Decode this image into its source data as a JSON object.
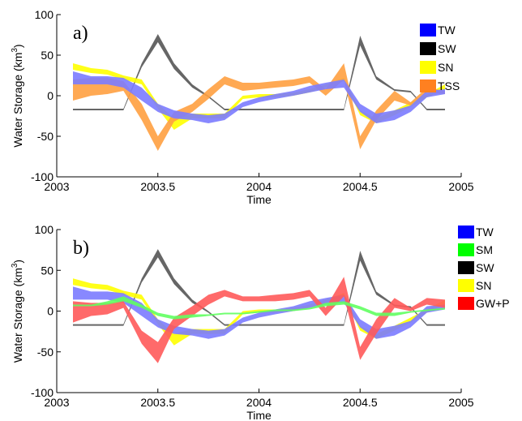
{
  "chart_data": [
    {
      "type": "area",
      "panel_label": "a)",
      "xlabel": "Time",
      "ylabel": "Water Storage (km³)",
      "ylabel_main": "Water Storage (km",
      "ylabel_sup": "3",
      "ylabel_close": ")",
      "xlim": [
        2003,
        2005
      ],
      "ylim": [
        -100,
        100
      ],
      "xticks": [
        2003,
        2003.5,
        2004,
        2004.5,
        2005
      ],
      "xtick_labels": [
        "2003",
        "2003.5",
        "2004",
        "2004.5",
        "2005"
      ],
      "yticks": [
        -100,
        -50,
        0,
        50,
        100
      ],
      "ytick_labels": [
        "-100",
        "-50",
        "0",
        "50",
        "100"
      ],
      "legend_position": "top-right",
      "series": [
        {
          "name": "SW",
          "color": "#555555",
          "x": [
            2003.08,
            2003.17,
            2003.25,
            2003.33,
            2003.42,
            2003.5,
            2003.58,
            2003.67,
            2003.75,
            2003.83,
            2003.92,
            2004.0,
            2004.08,
            2004.17,
            2004.25,
            2004.33,
            2004.42,
            2004.5,
            2004.58,
            2004.67,
            2004.75,
            2004.83,
            2004.92
          ],
          "upper": [
            -16,
            -16,
            -16,
            -16,
            40,
            76,
            40,
            14,
            0,
            -16,
            -16,
            -16,
            -16,
            -16,
            -16,
            -16,
            -16,
            74,
            24,
            8,
            6,
            -16,
            -16
          ],
          "lower": [
            -18,
            -18,
            -18,
            -18,
            35,
            66,
            33,
            10,
            -2,
            -18,
            -18,
            -18,
            -18,
            -18,
            -18,
            -18,
            -18,
            62,
            20,
            6,
            4,
            -18,
            -18
          ]
        },
        {
          "name": "SN",
          "color": "#ffff00",
          "x": [
            2003.08,
            2003.17,
            2003.25,
            2003.33,
            2003.42,
            2003.5,
            2003.58,
            2003.67,
            2003.75,
            2003.83,
            2003.92,
            2004.0,
            2004.08,
            2004.17,
            2004.25,
            2004.33,
            2004.42,
            2004.5,
            2004.58,
            2004.67,
            2004.75,
            2004.83,
            2004.92
          ],
          "upper": [
            40,
            34,
            32,
            25,
            20,
            -10,
            -28,
            -22,
            -22,
            -22,
            0,
            2,
            2,
            4,
            8,
            14,
            22,
            -18,
            -28,
            -18,
            -8,
            2,
            14
          ],
          "lower": [
            32,
            28,
            26,
            20,
            14,
            -16,
            -42,
            -28,
            -28,
            -28,
            -4,
            -2,
            -2,
            0,
            4,
            10,
            18,
            -24,
            -34,
            -24,
            -14,
            -2,
            8
          ]
        },
        {
          "name": "TSS",
          "color": "#ffa040",
          "x": [
            2003.08,
            2003.17,
            2003.25,
            2003.33,
            2003.42,
            2003.5,
            2003.58,
            2003.67,
            2003.75,
            2003.83,
            2003.92,
            2004.0,
            2004.08,
            2004.17,
            2004.25,
            2004.33,
            2004.42,
            2004.5,
            2004.58,
            2004.67,
            2004.75,
            2004.83,
            2004.92
          ],
          "upper": [
            20,
            22,
            22,
            18,
            -10,
            -50,
            -20,
            -10,
            8,
            24,
            16,
            16,
            18,
            20,
            24,
            8,
            40,
            -50,
            -18,
            6,
            -8,
            10,
            6
          ],
          "lower": [
            -6,
            0,
            2,
            6,
            -30,
            -68,
            -32,
            -20,
            -4,
            14,
            6,
            8,
            10,
            12,
            16,
            0,
            20,
            -66,
            -30,
            -6,
            -12,
            4,
            2
          ]
        },
        {
          "name": "TW",
          "color": "#7b7bff",
          "x": [
            2003.08,
            2003.17,
            2003.25,
            2003.33,
            2003.42,
            2003.5,
            2003.58,
            2003.67,
            2003.75,
            2003.83,
            2003.92,
            2004.0,
            2004.08,
            2004.17,
            2004.25,
            2004.33,
            2004.42,
            2004.5,
            2004.58,
            2004.67,
            2004.75,
            2004.83,
            2004.92
          ],
          "upper": [
            30,
            24,
            24,
            22,
            10,
            -10,
            -18,
            -22,
            -24,
            -22,
            -8,
            -2,
            2,
            6,
            12,
            16,
            20,
            -10,
            -22,
            -18,
            -12,
            6,
            8
          ],
          "lower": [
            14,
            14,
            14,
            10,
            -6,
            -20,
            -28,
            -30,
            -34,
            -30,
            -14,
            -8,
            -4,
            0,
            4,
            8,
            10,
            -20,
            -34,
            -30,
            -20,
            -2,
            2
          ]
        }
      ],
      "legend": [
        {
          "name": "TW",
          "color": "#0000ff"
        },
        {
          "name": "SW",
          "color": "#000000"
        },
        {
          "name": "SN",
          "color": "#ffff00"
        },
        {
          "name": "TSS",
          "color": "#ff8020"
        }
      ]
    },
    {
      "type": "area",
      "panel_label": "b)",
      "xlabel": "Time",
      "ylabel": "Water Storage (km³)",
      "ylabel_main": "Water Storage (km",
      "ylabel_sup": "3",
      "ylabel_close": ")",
      "xlim": [
        2003,
        2005
      ],
      "ylim": [
        -100,
        100
      ],
      "xticks": [
        2003,
        2003.5,
        2004,
        2004.5,
        2005
      ],
      "xtick_labels": [
        "2003",
        "2003.5",
        "2004",
        "2004.5",
        "2005"
      ],
      "yticks": [
        -100,
        -50,
        0,
        50,
        100
      ],
      "ytick_labels": [
        "-100",
        "-50",
        "0",
        "50",
        "100"
      ],
      "legend_position": "top-right",
      "series": [
        {
          "name": "SW",
          "color": "#555555",
          "x": [
            2003.08,
            2003.17,
            2003.25,
            2003.33,
            2003.42,
            2003.5,
            2003.58,
            2003.67,
            2003.75,
            2003.83,
            2003.92,
            2004.0,
            2004.08,
            2004.17,
            2004.25,
            2004.33,
            2004.42,
            2004.5,
            2004.58,
            2004.67,
            2004.75,
            2004.83,
            2004.92
          ],
          "upper": [
            -16,
            -16,
            -16,
            -16,
            40,
            76,
            40,
            14,
            0,
            -16,
            -16,
            -16,
            -16,
            -16,
            -16,
            -16,
            -16,
            74,
            24,
            8,
            6,
            -16,
            -16
          ],
          "lower": [
            -18,
            -18,
            -18,
            -18,
            35,
            66,
            33,
            10,
            -2,
            -18,
            -18,
            -18,
            -18,
            -18,
            -18,
            -18,
            -18,
            62,
            20,
            6,
            4,
            -18,
            -18
          ]
        },
        {
          "name": "SN",
          "color": "#ffff00",
          "x": [
            2003.08,
            2003.17,
            2003.25,
            2003.33,
            2003.42,
            2003.5,
            2003.58,
            2003.67,
            2003.75,
            2003.83,
            2003.92,
            2004.0,
            2004.08,
            2004.17,
            2004.25,
            2004.33,
            2004.42,
            2004.5,
            2004.58,
            2004.67,
            2004.75,
            2004.83,
            2004.92
          ],
          "upper": [
            40,
            34,
            32,
            25,
            20,
            -10,
            -28,
            -22,
            -22,
            -22,
            0,
            2,
            2,
            4,
            8,
            14,
            22,
            -18,
            -28,
            -18,
            -8,
            2,
            14
          ],
          "lower": [
            32,
            28,
            26,
            20,
            14,
            -16,
            -42,
            -28,
            -28,
            -28,
            -4,
            -2,
            -2,
            0,
            4,
            10,
            18,
            -24,
            -34,
            -24,
            -14,
            -2,
            8
          ]
        },
        {
          "name": "TW",
          "color": "#7b7bff",
          "x": [
            2003.08,
            2003.17,
            2003.25,
            2003.33,
            2003.42,
            2003.5,
            2003.58,
            2003.67,
            2003.75,
            2003.83,
            2003.92,
            2004.0,
            2004.08,
            2004.17,
            2004.25,
            2004.33,
            2004.42,
            2004.5,
            2004.58,
            2004.67,
            2004.75,
            2004.83,
            2004.92
          ],
          "upper": [
            30,
            24,
            24,
            22,
            10,
            -10,
            -18,
            -22,
            -24,
            -22,
            -8,
            -2,
            2,
            6,
            12,
            16,
            20,
            -10,
            -22,
            -18,
            -12,
            6,
            8
          ],
          "lower": [
            14,
            14,
            14,
            10,
            -6,
            -20,
            -28,
            -30,
            -34,
            -30,
            -14,
            -8,
            -4,
            0,
            4,
            8,
            10,
            -20,
            -34,
            -30,
            -20,
            -2,
            2
          ]
        },
        {
          "name": "GW+P",
          "color": "#ff5a5a",
          "x": [
            2003.08,
            2003.17,
            2003.25,
            2003.33,
            2003.42,
            2003.5,
            2003.58,
            2003.67,
            2003.75,
            2003.83,
            2003.92,
            2004.0,
            2004.08,
            2004.17,
            2004.25,
            2004.33,
            2004.42,
            2004.5,
            2004.58,
            2004.67,
            2004.75,
            2004.83,
            2004.92
          ],
          "upper": [
            12,
            10,
            10,
            12,
            -24,
            -38,
            -8,
            6,
            20,
            26,
            18,
            18,
            20,
            22,
            26,
            4,
            42,
            -44,
            -10,
            16,
            4,
            16,
            14
          ],
          "lower": [
            -14,
            -6,
            -4,
            4,
            -40,
            -64,
            -22,
            -6,
            8,
            18,
            12,
            12,
            12,
            14,
            18,
            -6,
            18,
            -60,
            -28,
            4,
            0,
            8,
            4
          ]
        },
        {
          "name": "SM",
          "color": "#60ff60",
          "x": [
            2003.08,
            2003.17,
            2003.25,
            2003.33,
            2003.42,
            2003.5,
            2003.58,
            2003.67,
            2003.75,
            2003.83,
            2003.92,
            2004.0,
            2004.08,
            2004.17,
            2004.25,
            2004.33,
            2004.42,
            2004.5,
            2004.58,
            2004.67,
            2004.75,
            2004.83,
            2004.92
          ],
          "upper": [
            8,
            8,
            12,
            18,
            8,
            -2,
            -6,
            -4,
            -4,
            -2,
            -2,
            0,
            2,
            2,
            4,
            10,
            12,
            6,
            -2,
            -2,
            0,
            2,
            4
          ],
          "lower": [
            6,
            6,
            8,
            12,
            4,
            -6,
            -10,
            -8,
            -6,
            -4,
            -4,
            -2,
            0,
            0,
            2,
            6,
            8,
            2,
            -6,
            -6,
            -2,
            0,
            2
          ]
        }
      ],
      "legend": [
        {
          "name": "TW",
          "color": "#0000ff"
        },
        {
          "name": "SM",
          "color": "#00ff00"
        },
        {
          "name": "SW",
          "color": "#000000"
        },
        {
          "name": "SN",
          "color": "#ffff00"
        },
        {
          "name": "GW+P",
          "color": "#ff0000"
        }
      ]
    }
  ]
}
